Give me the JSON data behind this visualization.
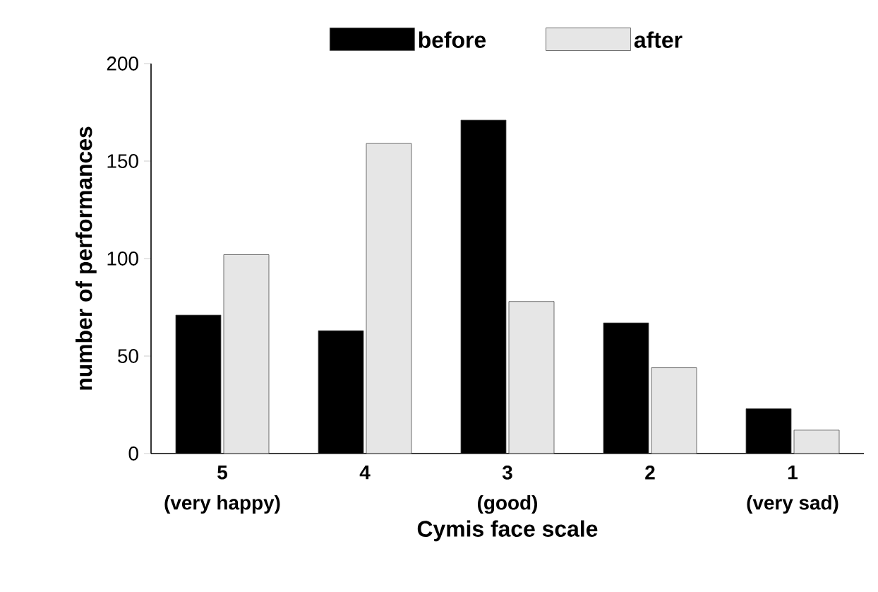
{
  "chart_data": {
    "type": "bar",
    "xlabel": "Cymis face scale",
    "ylabel": "number of performances",
    "categories": [
      "5",
      "4",
      "3",
      "2",
      "1"
    ],
    "series": [
      {
        "name": "before",
        "color": "#000000",
        "values": [
          71,
          63,
          171,
          67,
          23
        ]
      },
      {
        "name": "after",
        "color": "#e6e6e6",
        "values": [
          102,
          159,
          78,
          44,
          12
        ]
      }
    ],
    "annotations": [
      "(very happy)",
      "(good)",
      "(very sad)"
    ],
    "ylim": [
      0,
      200
    ],
    "yticks": [
      0,
      50,
      100,
      150,
      200
    ],
    "legend": "top"
  }
}
